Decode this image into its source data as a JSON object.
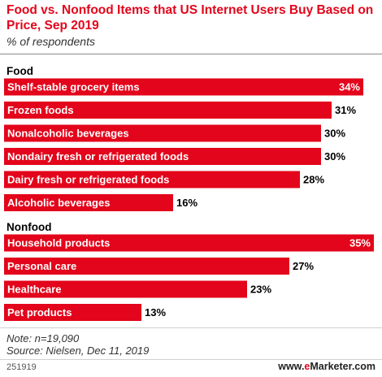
{
  "title": "Food vs. Nonfood Items that US Internet Users Buy Based on Price, Sep 2019",
  "subtitle": "% of respondents",
  "note": "Note: n=19,090",
  "source": "Source: Nielsen, Dec 11, 2019",
  "chart_id": "251919",
  "brand": {
    "prefix": "www.",
    "accent": "e",
    "name": "Marketer",
    "suffix": ".com"
  },
  "colors": {
    "bar": "#e3051b",
    "title": "#e3051b"
  },
  "chart_data": {
    "type": "bar",
    "orientation": "horizontal",
    "unit": "%",
    "xlim": [
      0,
      35
    ],
    "grid": false,
    "groups": [
      {
        "name": "Food",
        "categories": [
          "Shelf-stable grocery items",
          "Frozen foods",
          "Nonalcoholic beverages",
          "Nondairy fresh or refrigerated foods",
          "Dairy fresh or refrigerated foods",
          "Alcoholic beverages"
        ],
        "values": [
          34,
          31,
          30,
          30,
          28,
          16
        ]
      },
      {
        "name": "Nonfood",
        "categories": [
          "Household products",
          "Personal care",
          "Healthcare",
          "Pet products"
        ],
        "values": [
          35,
          27,
          23,
          13
        ]
      }
    ]
  }
}
